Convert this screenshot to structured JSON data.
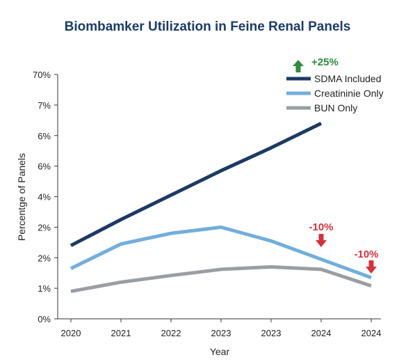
{
  "chart_data": {
    "type": "line",
    "title": "Biombamker Utilization in Feine Renal Panels",
    "xlabel": "Year",
    "ylabel": "Percentge of Panels",
    "categories": [
      "2020",
      "2021",
      "2022",
      "2023",
      "2023",
      "2024",
      "2024"
    ],
    "y_tick_labels": [
      "0%",
      "1%",
      "2%",
      "2%",
      "4%",
      "6%",
      "6%",
      "7%",
      "70%"
    ],
    "ylim": [
      0,
      8
    ],
    "grid": false,
    "legend_position": "top-right",
    "series": [
      {
        "name": "SDMA Included",
        "color": "#1c3a63",
        "values": [
          2.4,
          3.25,
          4.05,
          4.85,
          5.6,
          6.4,
          null
        ]
      },
      {
        "name": "Creatininie Only",
        "color": "#72aedc",
        "values": [
          1.65,
          2.45,
          2.8,
          3.0,
          2.55,
          1.95,
          1.35
        ]
      },
      {
        "name": "BUN Only",
        "color": "#9a9ea3",
        "values": [
          0.9,
          1.2,
          1.42,
          1.62,
          1.7,
          1.62,
          1.08
        ]
      }
    ],
    "annotations": [
      {
        "text": "+25%",
        "direction": "up",
        "color": "#2f8a3e"
      },
      {
        "text": "-10%",
        "direction": "down",
        "color": "#d2323c"
      },
      {
        "text": "-10%",
        "direction": "down",
        "color": "#d2323c"
      }
    ]
  }
}
